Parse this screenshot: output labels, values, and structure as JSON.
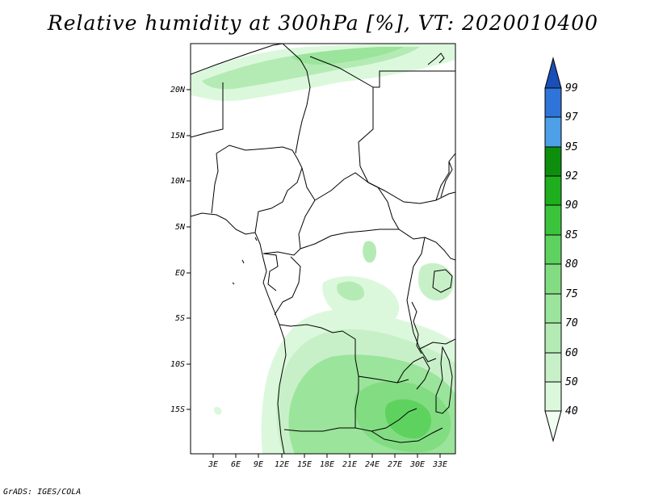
{
  "title": "Relative humidity at 300hPa [%], VT: 2020010400",
  "credit": "GrADS: IGES/COLA",
  "map": {
    "region": "Central Africa",
    "variable": "Relative humidity",
    "level": "300hPa",
    "units": "%",
    "lon_range": [
      0,
      35
    ],
    "lat_range": [
      -20,
      25
    ],
    "lat_labels": [
      "20N",
      "15N",
      "10N",
      "5N",
      "EQ",
      "5S",
      "10S",
      "15S"
    ],
    "lon_labels": [
      "3E",
      "6E",
      "9E",
      "12E",
      "15E",
      "18E",
      "21E",
      "24E",
      "27E",
      "30E",
      "33E"
    ]
  },
  "colorbar": {
    "levels": [
      "40",
      "50",
      "60",
      "70",
      "75",
      "80",
      "85",
      "90",
      "92",
      "95",
      "97",
      "99"
    ],
    "colors": [
      "#f0fff0",
      "#dcf8dc",
      "#c8f0c8",
      "#b4ebb4",
      "#9be49b",
      "#82dc82",
      "#5ed25e",
      "#3cc33c",
      "#1eae1e",
      "#0d8f0d",
      "#4d9fe8",
      "#2f74d8",
      "#1a4fb8"
    ]
  }
}
